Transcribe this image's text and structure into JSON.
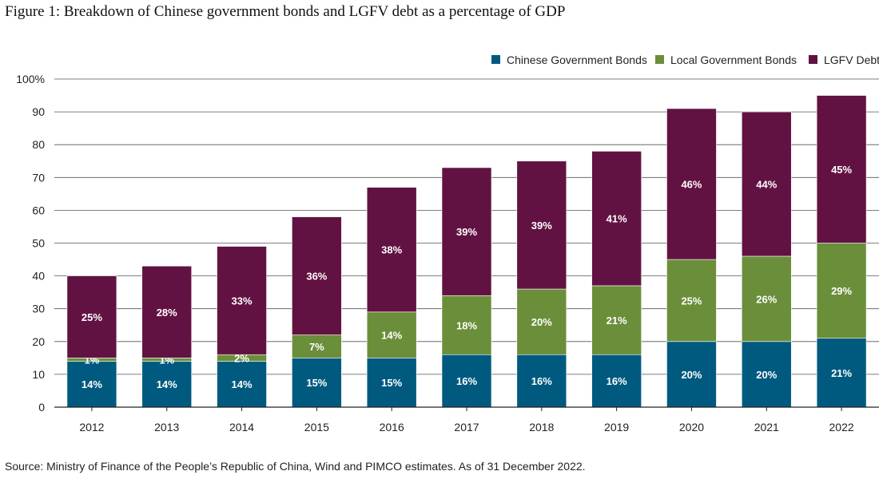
{
  "title": "Figure 1: Breakdown of Chinese government bonds and LGFV debt as a percentage of GDP",
  "source": "Source: Ministry of Finance of the People’s Republic of China, Wind and PIMCO estimates. As of 31 December 2022.",
  "chart_data": {
    "type": "bar",
    "stacked": true,
    "categories": [
      "2012",
      "2013",
      "2014",
      "2015",
      "2016",
      "2017",
      "2018",
      "2019",
      "2020",
      "2021",
      "2022"
    ],
    "series": [
      {
        "name": "Chinese Government Bonds",
        "color": "#005a7f",
        "values": [
          14,
          14,
          14,
          15,
          15,
          16,
          16,
          16,
          20,
          20,
          21
        ],
        "labels": [
          "14%",
          "14%",
          "14%",
          "15%",
          "15%",
          "16%",
          "16%",
          "16%",
          "20%",
          "20%",
          "21%"
        ]
      },
      {
        "name": "Local Government Bonds",
        "color": "#6b8e3a",
        "values": [
          1,
          1,
          2,
          7,
          14,
          18,
          20,
          21,
          25,
          26,
          29
        ],
        "labels": [
          "1%",
          "1%",
          "2%",
          "7%",
          "14%",
          "18%",
          "20%",
          "21%",
          "25%",
          "26%",
          "29%"
        ]
      },
      {
        "name": "LGFV Debt",
        "color": "#621242",
        "values": [
          25,
          28,
          33,
          36,
          38,
          39,
          39,
          41,
          46,
          44,
          45
        ],
        "labels": [
          "25%",
          "28%",
          "33%",
          "36%",
          "38%",
          "39%",
          "39%",
          "41%",
          "46%",
          "44%",
          "45%"
        ]
      }
    ],
    "ylim": [
      0,
      100
    ],
    "yticks": [
      0,
      10,
      20,
      30,
      40,
      50,
      60,
      70,
      80,
      90,
      100
    ],
    "ytick_labels": [
      "0",
      "10",
      "20",
      "30",
      "40",
      "50",
      "60",
      "70",
      "80",
      "90",
      "100%"
    ],
    "grid": true,
    "legend_position": "top-right"
  }
}
